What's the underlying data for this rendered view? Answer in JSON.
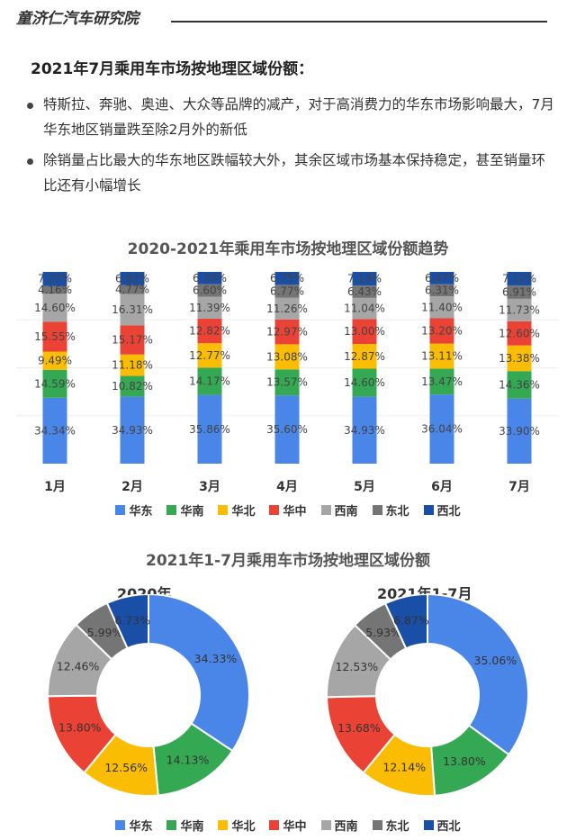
{
  "header": {
    "title": "童济仁汽车研究院"
  },
  "section": {
    "title": "2021年7月乘用车市场按地理区域份额：",
    "bullets": [
      "特斯拉、奔驰、奥迪、大众等品牌的减产，对于高消费力的华东市场影响最大，7月华东地区销量跌至除2月外的新低",
      "除销量占比最大的华东地区跌幅较大外，其余区域市场基本保持稳定，甚至销量环比还有小幅增长"
    ]
  },
  "regions": [
    {
      "name": "华东",
      "color": "#4a86e8"
    },
    {
      "name": "华南",
      "color": "#34a853"
    },
    {
      "name": "华北",
      "color": "#fbbc04"
    },
    {
      "name": "华中",
      "color": "#ea4335"
    },
    {
      "name": "西南",
      "color": "#a6a6a6"
    },
    {
      "name": "东北",
      "color": "#757575"
    },
    {
      "name": "西北",
      "color": "#1a4fa8"
    }
  ],
  "chart_data": [
    {
      "type": "bar",
      "stacked": true,
      "title": "2020-2021年乘用车市场按地理区域份额趋势",
      "categories": [
        "1月",
        "2月",
        "3月",
        "4月",
        "5月",
        "6月",
        "7月"
      ],
      "series": [
        {
          "name": "华东",
          "values": [
            34.34,
            34.93,
            35.86,
            35.6,
            34.93,
            36.04,
            33.9
          ]
        },
        {
          "name": "华南",
          "values": [
            14.59,
            10.82,
            14.17,
            13.57,
            14.6,
            13.47,
            14.36
          ]
        },
        {
          "name": "华北",
          "values": [
            9.49,
            11.18,
            12.77,
            13.08,
            12.87,
            13.11,
            13.38
          ]
        },
        {
          "name": "华中",
          "values": [
            15.55,
            15.17,
            12.82,
            12.97,
            13.0,
            13.2,
            12.6
          ]
        },
        {
          "name": "西南",
          "values": [
            14.6,
            16.31,
            11.39,
            11.26,
            11.04,
            11.4,
            11.73
          ]
        },
        {
          "name": "东北",
          "values": [
            4.16,
            4.77,
            6.6,
            6.77,
            6.43,
            6.31,
            6.91
          ]
        },
        {
          "name": "西北",
          "values": [
            7.27,
            6.82,
            6.39,
            6.75,
            7.13,
            6.47,
            7.12
          ]
        }
      ],
      "value_labels": [
        [
          "34.34%",
          "34.93%",
          "35.86%",
          "35.60%",
          "34.93%",
          "36.04%",
          "33.90%"
        ],
        [
          "14.59%",
          "10.82%",
          "14.17%",
          "13.57%",
          "14.60%",
          "13.47%",
          "14.36%"
        ],
        [
          "9.49%",
          "11.18%",
          "12.77%",
          "13.08%",
          "12.87%",
          "13.11%",
          "13.38%"
        ],
        [
          "15.55%",
          "15.17%",
          "12.82%",
          "12.97%",
          "13.00%",
          "13.20%",
          "12.60%"
        ],
        [
          "14.60%",
          "16.31%",
          "11.39%",
          "11.26%",
          "11.04%",
          "11.40%",
          "11.73%"
        ],
        [
          "4.16%",
          "4.77%",
          "6.60%",
          "6.77%",
          "6.43%",
          "6.31%",
          "6.91%"
        ],
        [
          "7.27%",
          "6.82%",
          "6.39%",
          "6.75%",
          "7.13%",
          "6.47%",
          "7.12%"
        ]
      ],
      "ylim": [
        0,
        100
      ],
      "legend": "bottom"
    },
    {
      "type": "pie",
      "donut": true,
      "title": "2021年1-7月乘用车市场按地理区域份额",
      "subtitle": "2020年",
      "labels": [
        "华东",
        "华南",
        "华北",
        "华中",
        "西南",
        "东北",
        "西北"
      ],
      "values": [
        34.33,
        14.13,
        12.56,
        13.8,
        12.46,
        5.99,
        6.73
      ],
      "value_labels": [
        "34.33%",
        "14.13%",
        "12.56%",
        "13.80%",
        "12.46%",
        "5.99%",
        "6.73%"
      ],
      "legend": "bottom"
    },
    {
      "type": "pie",
      "donut": true,
      "title": "2021年1-7月乘用车市场按地理区域份额",
      "subtitle": "2021年1-7月",
      "labels": [
        "华东",
        "华南",
        "华北",
        "华中",
        "西南",
        "东北",
        "西北"
      ],
      "values": [
        35.06,
        13.8,
        12.14,
        13.68,
        12.53,
        5.93,
        6.87
      ],
      "value_labels": [
        "35.06%",
        "13.80%",
        "12.14%",
        "13.68%",
        "12.53%",
        "5.93%",
        "6.87%"
      ],
      "legend": "bottom"
    }
  ]
}
